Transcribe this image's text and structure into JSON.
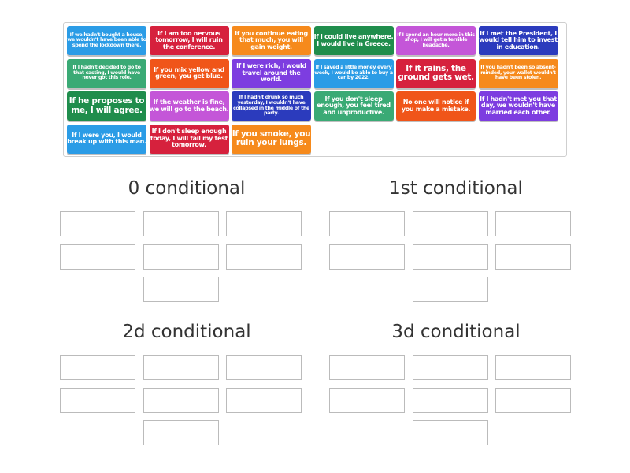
{
  "colors": {
    "blue": "#2b9ce6",
    "red": "#d6213d",
    "orange": "#f68a1c",
    "green": "#1f8d4c",
    "teal": "#3aaa75",
    "orangered": "#f05519",
    "purple": "#7d3de0",
    "magenta": "#c456d8",
    "navy": "#2b3bbd"
  },
  "cards": [
    {
      "text": "If we hadn't bought a house, we wouldn't have been able to spend the lockdown there.",
      "color": "blue",
      "size": "s1"
    },
    {
      "text": "If I am too nervous tomorrow, I will ruin the conference.",
      "color": "red",
      "size": "s2"
    },
    {
      "text": "If you continue eating that much, you will gain weight.",
      "color": "orange",
      "size": "s2"
    },
    {
      "text": "If I could live anywhere, I would live in Greece.",
      "color": "green",
      "size": "s2"
    },
    {
      "text": "If I spend an hour more in this shop, I will get a terrible headache.",
      "color": "magenta",
      "size": "s1"
    },
    {
      "text": "If I met the President, I would tell him to invest in education.",
      "color": "navy",
      "size": "s2"
    },
    {
      "text": "If I hadn't decided to go to that casting, I would have never got this role.",
      "color": "teal",
      "size": "s1"
    },
    {
      "text": "If you mix yellow and green, you get blue.",
      "color": "orangered",
      "size": "s2"
    },
    {
      "text": "If I were rich, I would travel around the world.",
      "color": "purple",
      "size": "s2"
    },
    {
      "text": "If I saved a little money every week, I would be able to buy a car by 2022.",
      "color": "blue",
      "size": "s1"
    },
    {
      "text": "If it rains, the ground gets wet.",
      "color": "red",
      "size": "s3"
    },
    {
      "text": "If you hadn't been so absent-minded, your wallet wouldn't have been stolen.",
      "color": "orange",
      "size": "s1"
    },
    {
      "text": "If he proposes to me, I will agree.",
      "color": "green",
      "size": "s3"
    },
    {
      "text": "If the weather is fine, we will go to the beach.",
      "color": "magenta",
      "size": "s2"
    },
    {
      "text": "If I hadn't drunk so much yesterday, I wouldn't have collapsed in the middle of the party.",
      "color": "navy",
      "size": "s1"
    },
    {
      "text": "If you don't sleep enough, you feel tired and unproductive.",
      "color": "teal",
      "size": "s2"
    },
    {
      "text": "No one will notice if you make a mistake.",
      "color": "orangered",
      "size": "s2"
    },
    {
      "text": "If I hadn't met you that day, we wouldn't have married each other.",
      "color": "purple",
      "size": "s2"
    },
    {
      "text": "If I were you, I would break up with this man.",
      "color": "blue",
      "size": "s2"
    },
    {
      "text": "If I don't sleep enough today, I will fail my test tomorrow.",
      "color": "red",
      "size": "s2"
    },
    {
      "text": "If you smoke, you ruin your lungs.",
      "color": "orange",
      "size": "s3"
    }
  ],
  "groups": [
    {
      "title": "0 conditional"
    },
    {
      "title": "1st conditional"
    },
    {
      "title": "2d conditional"
    },
    {
      "title": "3d conditional"
    }
  ]
}
